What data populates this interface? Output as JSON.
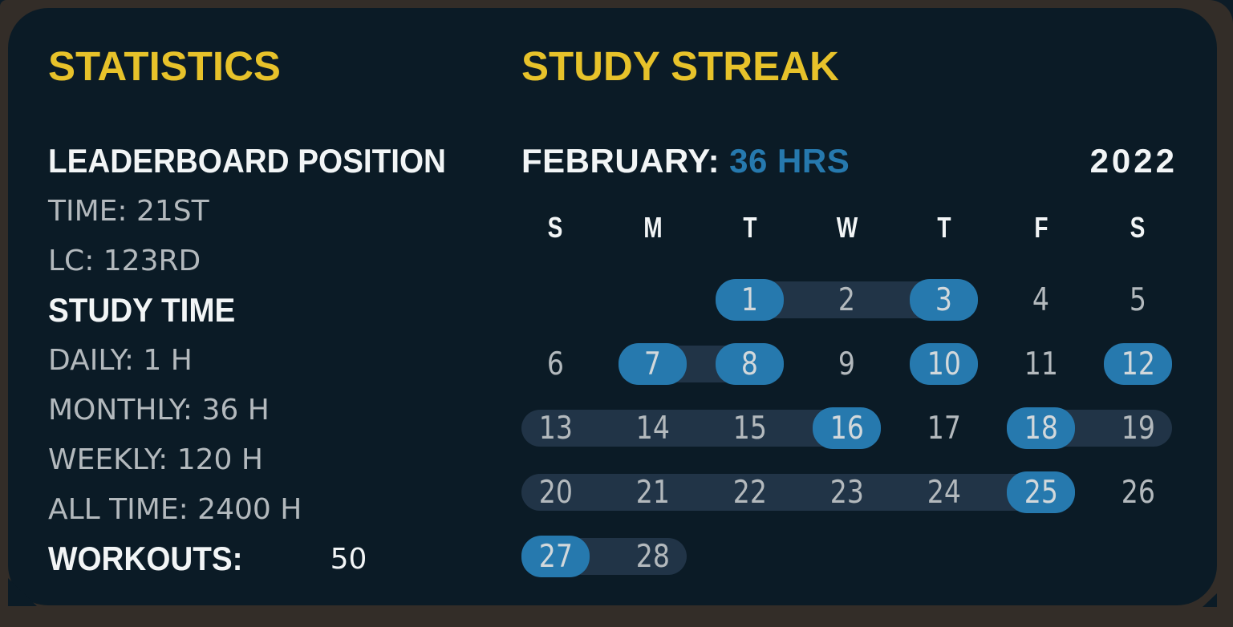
{
  "colors": {
    "page_bg": "#0d1c27",
    "frame_brown": "#332d28",
    "card_bg": "#0b1b26",
    "accent_yellow": "#e7c22a",
    "accent_blue": "#2679ae",
    "band": "#213447",
    "text_white": "#f2f5f6",
    "text_gray": "#b3b9bd",
    "pill_text": "#d2d8db"
  },
  "statistics": {
    "title": "STATISTICS",
    "lines": [
      {
        "text": "LEADERBOARD POSITION",
        "style": "label"
      },
      {
        "text": "TIME: 21ST",
        "style": "value"
      },
      {
        "text": "LC: 123RD",
        "style": "value"
      },
      {
        "text": "STUDY TIME",
        "style": "label"
      },
      {
        "text": "DAILY: 1 H",
        "style": "value"
      },
      {
        "text": "MONTHLY: 36 H",
        "style": "value"
      },
      {
        "text": "WEEKLY: 120 H",
        "style": "value"
      },
      {
        "text": "ALL TIME: 2400 H",
        "style": "value"
      }
    ],
    "workouts": {
      "label": "WORKOUTS:",
      "value": "50"
    }
  },
  "streak": {
    "title": "STUDY STREAK",
    "month": {
      "label": "FEBRUARY:",
      "hours": "36 HRS"
    },
    "year": "2022",
    "weekdays": [
      "S",
      "M",
      "T",
      "W",
      "T",
      "F",
      "S"
    ],
    "first_day_column": 2,
    "days": [
      {
        "n": 1,
        "studied": true
      },
      {
        "n": 2,
        "studied": false
      },
      {
        "n": 3,
        "studied": true
      },
      {
        "n": 4,
        "studied": false
      },
      {
        "n": 5,
        "studied": false
      },
      {
        "n": 6,
        "studied": false
      },
      {
        "n": 7,
        "studied": true
      },
      {
        "n": 8,
        "studied": true
      },
      {
        "n": 9,
        "studied": false
      },
      {
        "n": 10,
        "studied": true
      },
      {
        "n": 11,
        "studied": false
      },
      {
        "n": 12,
        "studied": true
      },
      {
        "n": 13,
        "studied": false
      },
      {
        "n": 14,
        "studied": false
      },
      {
        "n": 15,
        "studied": false
      },
      {
        "n": 16,
        "studied": true
      },
      {
        "n": 17,
        "studied": false
      },
      {
        "n": 18,
        "studied": true
      },
      {
        "n": 19,
        "studied": false
      },
      {
        "n": 20,
        "studied": false
      },
      {
        "n": 21,
        "studied": false
      },
      {
        "n": 22,
        "studied": false
      },
      {
        "n": 23,
        "studied": false
      },
      {
        "n": 24,
        "studied": false
      },
      {
        "n": 25,
        "studied": true
      },
      {
        "n": 26,
        "studied": false
      },
      {
        "n": 27,
        "studied": true
      },
      {
        "n": 28,
        "studied": false
      }
    ],
    "streak_bands": [
      [
        1,
        3
      ],
      [
        7,
        8
      ],
      [
        13,
        16
      ],
      [
        18,
        19
      ],
      [
        20,
        25
      ],
      [
        27,
        28
      ]
    ]
  }
}
